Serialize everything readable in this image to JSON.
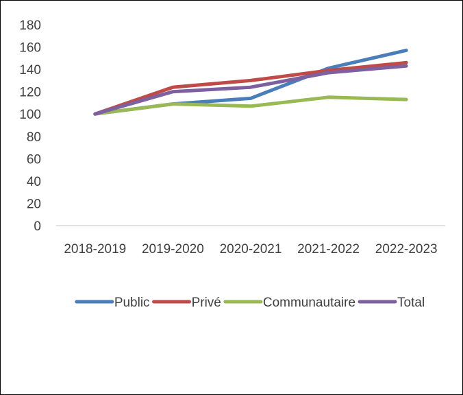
{
  "chart_data": {
    "type": "line",
    "categories": [
      "2018-2019",
      "2019-2020",
      "2020-2021",
      "2021-2022",
      "2022-2023"
    ],
    "series": [
      {
        "name": "Public",
        "color": "#4a7ebb",
        "values": [
          100,
          109,
          114,
          141,
          157
        ]
      },
      {
        "name": "Privé",
        "color": "#be4b48",
        "values": [
          100,
          124,
          130,
          139,
          146
        ]
      },
      {
        "name": "Communautaire",
        "color": "#98b954",
        "values": [
          100,
          109,
          107,
          115,
          113
        ]
      },
      {
        "name": "Total",
        "color": "#7d60a0",
        "values": [
          100,
          120,
          124,
          137,
          143
        ]
      }
    ],
    "ylim": [
      0,
      180
    ],
    "yticks": [
      0,
      20,
      40,
      60,
      80,
      100,
      120,
      140,
      160,
      180
    ],
    "grid": false,
    "legend": "bottom"
  }
}
